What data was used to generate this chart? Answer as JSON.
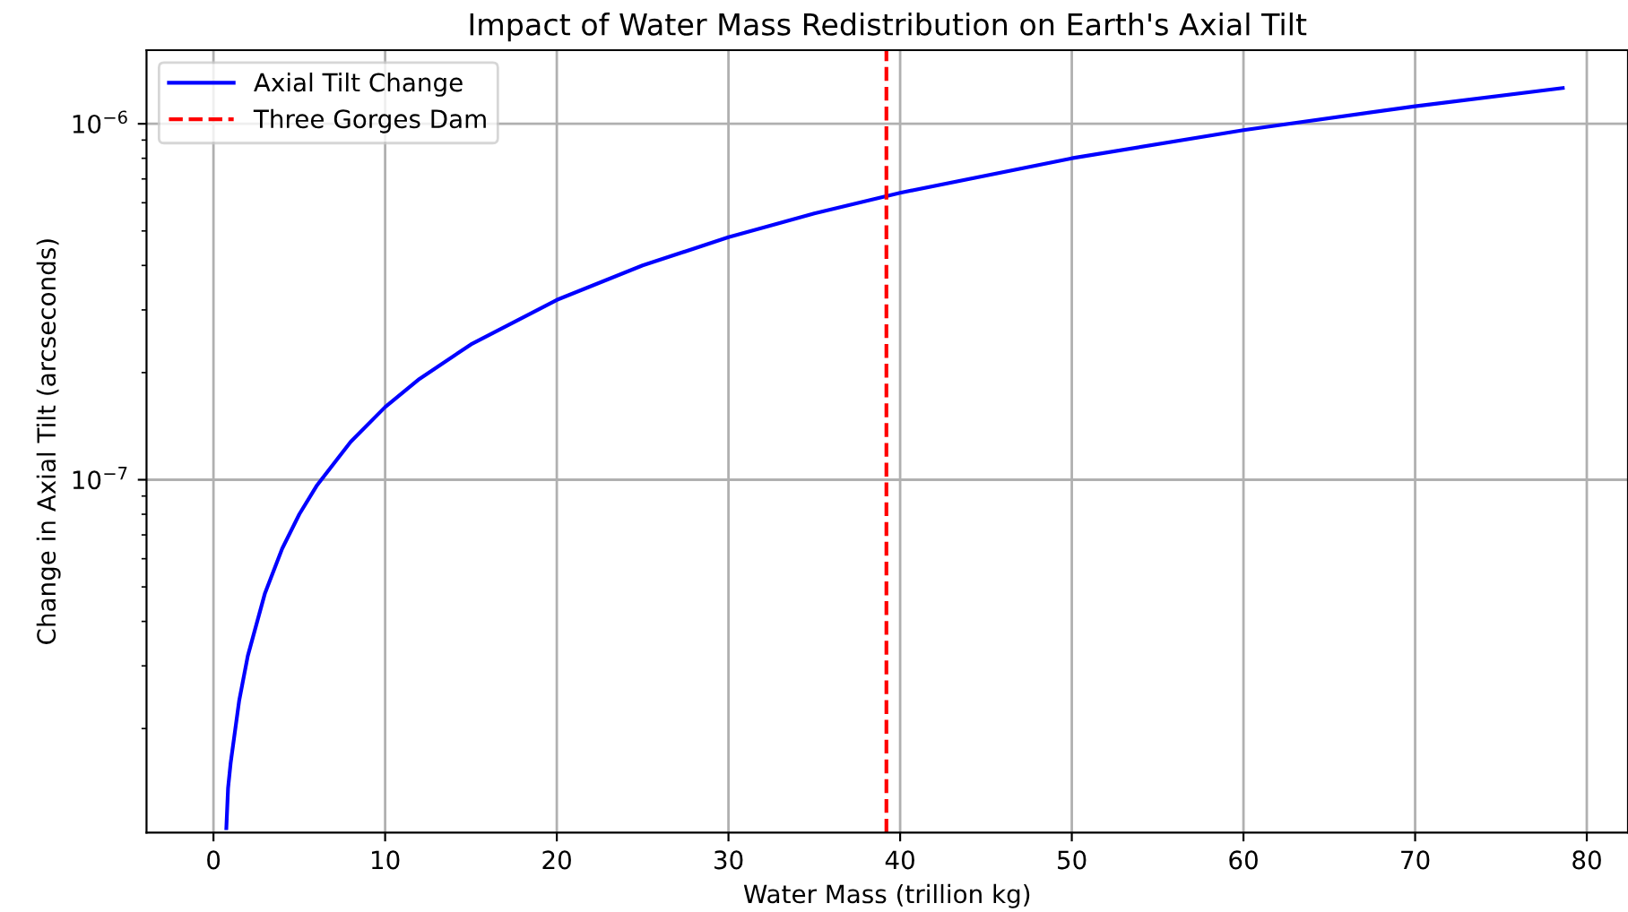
{
  "chart_data": {
    "type": "line",
    "title": "Impact of Water Mass Redistribution on Earth's Axial Tilt",
    "xlabel": "Water Mass (trillion kg)",
    "ylabel": "Change in Axial Tilt (arcseconds)",
    "series": [
      {
        "name": "Axial Tilt Change",
        "color": "#0000ff",
        "x": [
          0.75,
          0.85,
          1,
          1.5,
          2,
          3,
          4,
          5,
          6,
          8,
          10,
          12,
          15,
          20,
          25,
          30,
          35,
          40,
          50,
          60,
          70,
          78.6
        ],
        "values": [
          1.05e-08,
          1.36e-08,
          1.6e-08,
          2.4e-08,
          3.2e-08,
          4.8e-08,
          6.4e-08,
          8e-08,
          9.6e-08,
          1.28e-07,
          1.6e-07,
          1.92e-07,
          2.4e-07,
          3.2e-07,
          4e-07,
          4.8e-07,
          5.6e-07,
          6.4e-07,
          8e-07,
          9.6e-07,
          1.12e-06,
          1.26e-06
        ]
      },
      {
        "name": "Three Gorges Dam",
        "color": "#ff0000",
        "line_style": "dashed",
        "x": [
          39.2,
          39.2
        ],
        "values": [
          1.02e-08,
          1.61e-06
        ]
      }
    ],
    "log": "y",
    "xlim": [
      -3.9,
      82.4
    ],
    "ylim": [
      1.02e-08,
      1.61e-06
    ],
    "xticks": [
      0,
      10,
      20,
      30,
      40,
      50,
      60,
      70,
      80
    ],
    "yticks": [
      {
        "value": 1e-07,
        "label": "10$^{−7}$"
      },
      {
        "value": 1e-06,
        "label": "10$^{−6}$"
      },
      {
        "value": 2e-08,
        "label": null
      },
      {
        "value": 3e-08,
        "label": null
      },
      {
        "value": 4e-08,
        "label": null
      },
      {
        "value": 5e-08,
        "label": null
      },
      {
        "value": 6e-08,
        "label": null
      },
      {
        "value": 7e-08,
        "label": null
      },
      {
        "value": 8e-08,
        "label": null
      },
      {
        "value": 9e-08,
        "label": null
      },
      {
        "value": 2e-07,
        "label": null
      },
      {
        "value": 3e-07,
        "label": null
      },
      {
        "value": 4e-07,
        "label": null
      },
      {
        "value": 5e-07,
        "label": null
      },
      {
        "value": 6e-07,
        "label": null
      },
      {
        "value": 7e-07,
        "label": null
      },
      {
        "value": 8e-07,
        "label": null
      },
      {
        "value": 9e-07,
        "label": null
      }
    ],
    "grid": true,
    "legend": "top left",
    "line_style": "solid",
    "marker": "none"
  }
}
